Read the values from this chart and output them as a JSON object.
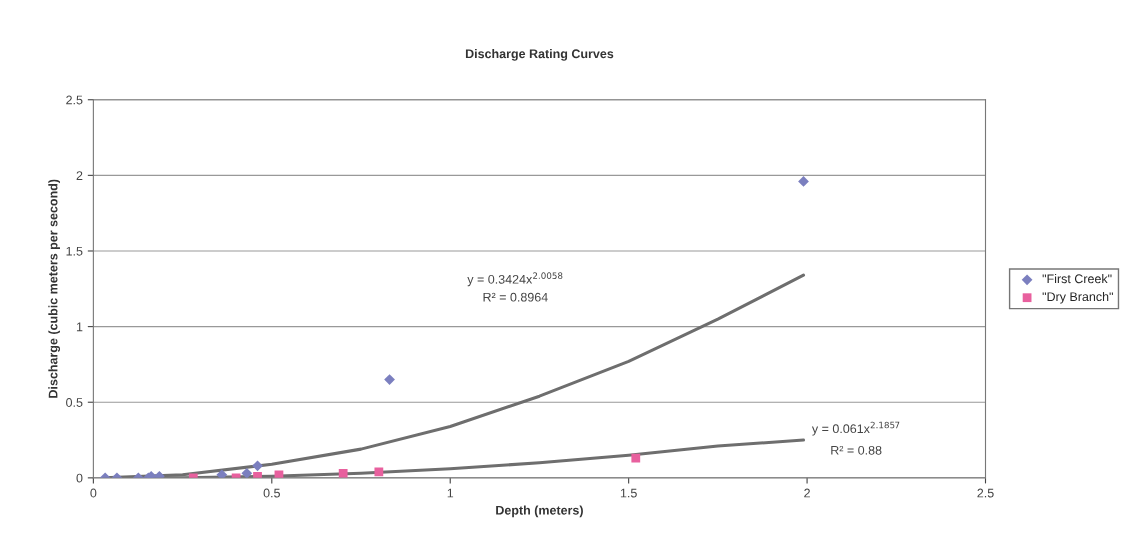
{
  "chart_data": {
    "type": "scatter",
    "title": "Discharge Rating Curves",
    "xlabel": "Depth (meters)",
    "ylabel": "Discharge (cubic meters per second)",
    "xlim": [
      0,
      2.5
    ],
    "xticks": [
      0,
      0.5,
      1,
      1.5,
      2,
      2.5
    ],
    "ylim": [
      0,
      2.5
    ],
    "yticks": [
      0,
      0.5,
      1,
      1.5,
      2,
      2.5
    ],
    "grid": "y",
    "legend": "right",
    "series": [
      {
        "name": "\"First Creek\"",
        "marker": "diamond",
        "color": "#7b7fbf",
        "x": [
          0.033,
          0.066,
          0.126,
          0.154,
          0.162,
          0.185,
          0.36,
          0.43,
          0.46,
          0.83,
          1.99
        ],
        "values": [
          0,
          0,
          0,
          0,
          0.01,
          0.01,
          0.02,
          0.03,
          0.08,
          0.65,
          1.96
        ]
      },
      {
        "name": "\"Dry Branch\"",
        "marker": "square",
        "color": "#e8609e",
        "x": [
          0.28,
          0.4,
          0.46,
          0.52,
          0.7,
          0.8,
          1.52
        ],
        "values": [
          0,
          0,
          0.01,
          0.02,
          0.03,
          0.04,
          0.13
        ]
      },
      {
        "type": "line",
        "marker": "none",
        "color": "#6e6e6e",
        "x": [
          0.03,
          0.25,
          0.5,
          0.75,
          1,
          1.25,
          1.5,
          1.75,
          1.99
        ],
        "values": [
          0,
          0.02,
          0.09,
          0.19,
          0.34,
          0.54,
          0.77,
          1.05,
          1.34
        ]
      },
      {
        "type": "line",
        "marker": "none",
        "color": "#6e6e6e",
        "x": [
          0.03,
          0.25,
          0.5,
          0.75,
          1,
          1.25,
          1.5,
          1.75,
          1.99
        ],
        "values": [
          0,
          0,
          0.01,
          0.03,
          0.06,
          0.1,
          0.15,
          0.21,
          0.25
        ]
      }
    ],
    "annotations": [
      "y = 0.3424x$^{2.0058}$",
      "R² = 0.8964",
      "y = 0.061x$^{2.1857}$",
      "R² = 0.88"
    ]
  }
}
